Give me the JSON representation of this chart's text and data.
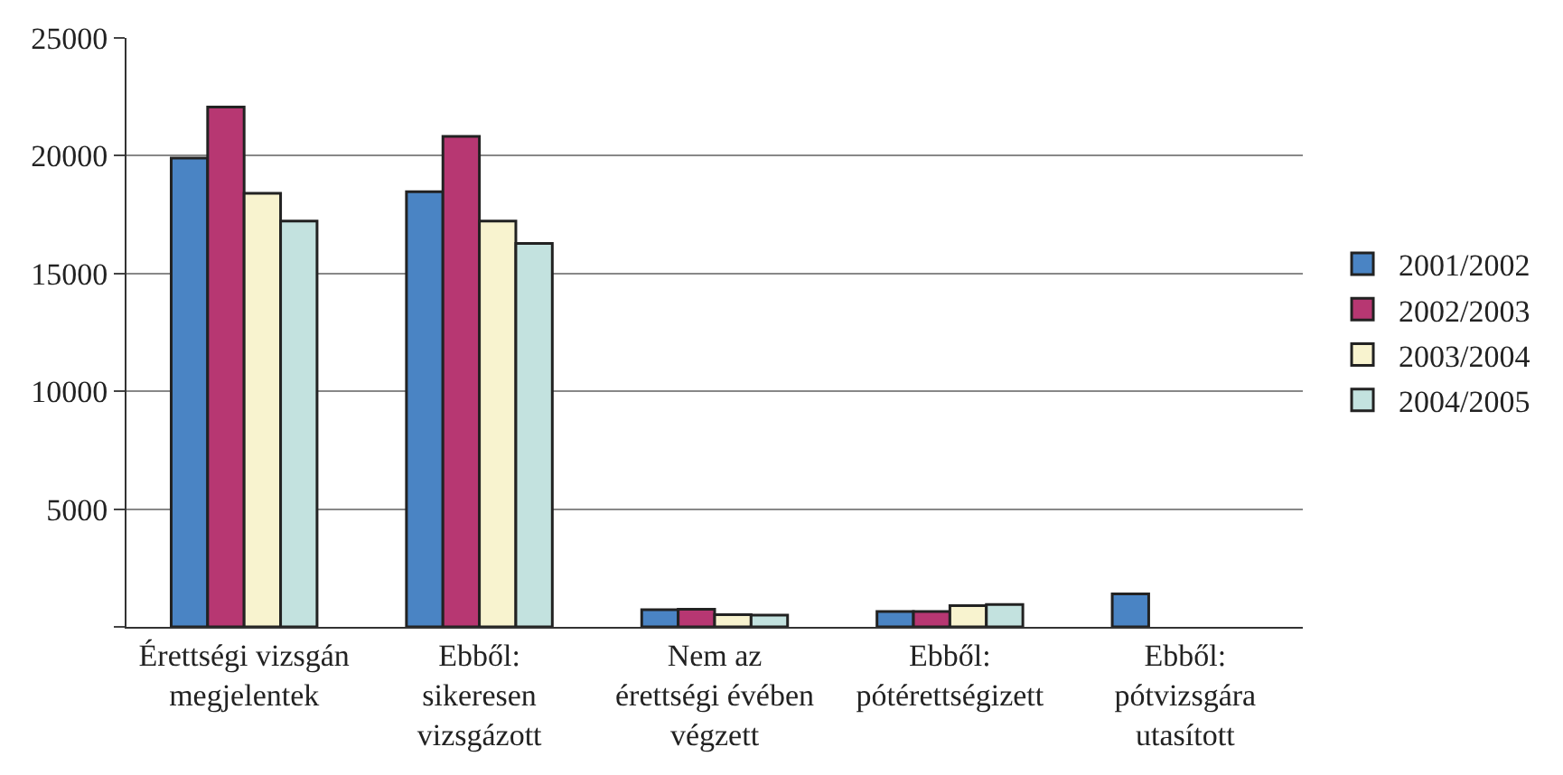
{
  "chart_data": {
    "type": "bar",
    "categories": [
      "Érettségi vizsgán\nmegjelentek",
      "Ebből:\nsikeresen\nvizsgázott",
      "Nem az\nérettségi évében\nvégzett",
      "Ebből:\npótérettségizett",
      "Ebből:\npótvizsgára\nutasított"
    ],
    "series": [
      {
        "name": "2001/2002",
        "color": "#4a84c4",
        "values": [
          19900,
          18470,
          730,
          650,
          1400
        ]
      },
      {
        "name": "2002/2003",
        "color": "#b73772",
        "values": [
          22070,
          20820,
          750,
          650,
          null
        ]
      },
      {
        "name": "2003/2004",
        "color": "#f8f3cf",
        "values": [
          18400,
          17230,
          520,
          900,
          null
        ]
      },
      {
        "name": "2004/2005",
        "color": "#c3e2df",
        "values": [
          17230,
          16280,
          500,
          950,
          null
        ]
      }
    ],
    "ylim": [
      0,
      25000
    ],
    "yticks": [
      {
        "value": 0,
        "label": null
      },
      5000,
      10000,
      15000,
      20000,
      25000
    ],
    "grid": "y",
    "legend": "right"
  }
}
